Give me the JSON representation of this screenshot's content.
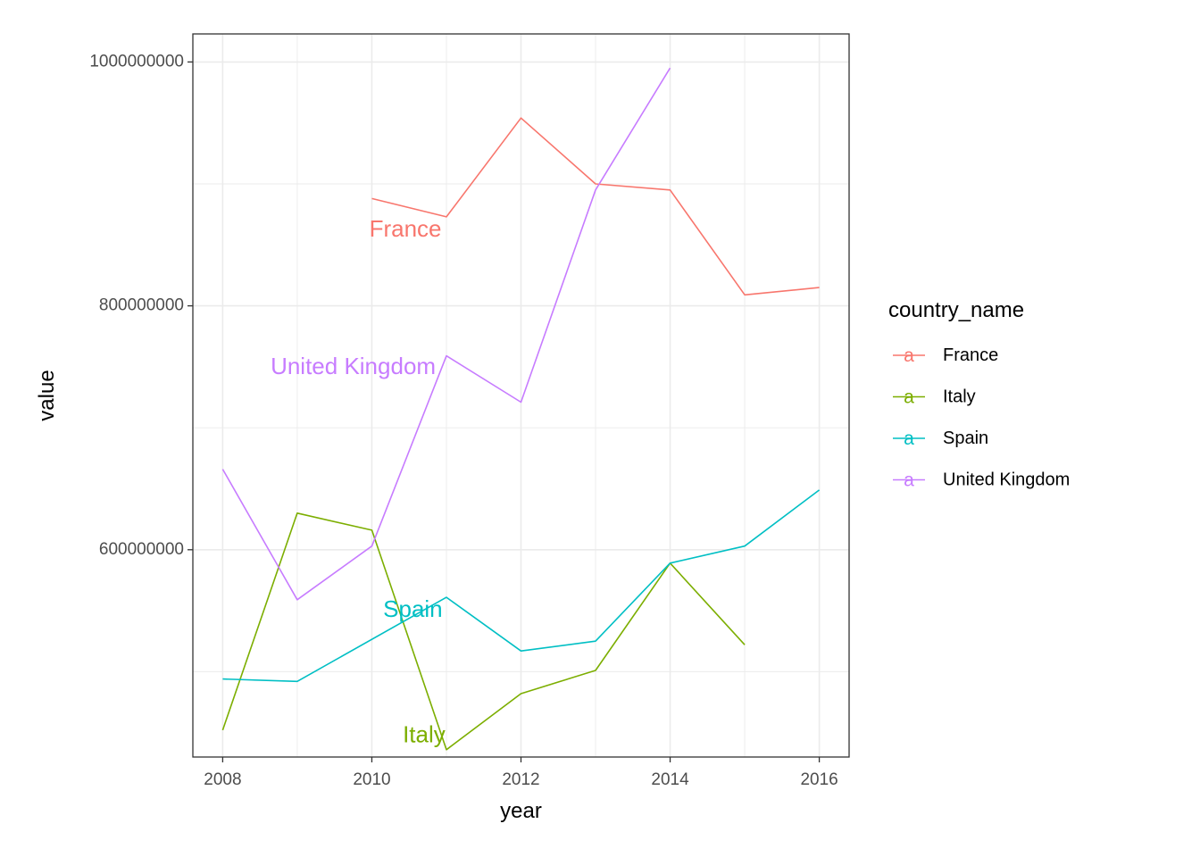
{
  "chart_data": {
    "type": "line",
    "title": "",
    "xlabel": "year",
    "ylabel": "value",
    "xlim": [
      2007.6,
      2016.4
    ],
    "ylim": [
      430000000,
      1023000000
    ],
    "x_ticks": [
      2008,
      2010,
      2012,
      2014,
      2016
    ],
    "x_tick_labels": [
      "2008",
      "2010",
      "2012",
      "2014",
      "2016"
    ],
    "y_ticks": [
      600000000,
      800000000,
      1000000000
    ],
    "y_tick_labels": [
      "600000000",
      "800000000",
      "1000000000"
    ],
    "y_minor_ticks": [
      500000000,
      700000000,
      900000000
    ],
    "x_minor_ticks": [
      2009,
      2011,
      2013,
      2015
    ],
    "grid": true,
    "legend": {
      "title": "country_name",
      "position": "right",
      "key_glyph": "a"
    },
    "series": [
      {
        "name": "France",
        "color": "#F8766D",
        "label_text": "France",
        "label_pos": [
          2010.45,
          862000000
        ],
        "points": [
          [
            2010,
            888000000
          ],
          [
            2011,
            873000000
          ],
          [
            2012,
            954000000
          ],
          [
            2013,
            900000000
          ],
          [
            2014,
            895000000
          ],
          [
            2015,
            809000000
          ],
          [
            2016,
            815000000
          ]
        ]
      },
      {
        "name": "Italy",
        "color": "#7CAE00",
        "label_text": "Italy",
        "label_pos": [
          2010.7,
          447000000
        ],
        "points": [
          [
            2008,
            452000000
          ],
          [
            2009,
            630000000
          ],
          [
            2010,
            616000000
          ],
          [
            2011,
            436000000
          ],
          [
            2012,
            482000000
          ],
          [
            2013,
            501000000
          ],
          [
            2014,
            589000000
          ],
          [
            2015,
            522000000
          ]
        ]
      },
      {
        "name": "Spain",
        "color": "#00BFC4",
        "label_text": "Spain",
        "label_pos": [
          2010.55,
          550000000
        ],
        "points": [
          [
            2008,
            494000000
          ],
          [
            2009,
            492000000
          ],
          [
            2011,
            561000000
          ],
          [
            2012,
            517000000
          ],
          [
            2013,
            525000000
          ],
          [
            2014,
            589000000
          ],
          [
            2015,
            603000000
          ],
          [
            2016,
            649000000
          ]
        ]
      },
      {
        "name": "United Kingdom",
        "color": "#C77CFF",
        "label_text": "United Kingdom",
        "label_pos": [
          2009.75,
          749000000
        ],
        "points": [
          [
            2008,
            666000000
          ],
          [
            2009,
            559000000
          ],
          [
            2010,
            603000000
          ],
          [
            2011,
            759000000
          ],
          [
            2012,
            721000000
          ],
          [
            2013,
            895000000
          ],
          [
            2014,
            995000000
          ]
        ]
      }
    ]
  }
}
